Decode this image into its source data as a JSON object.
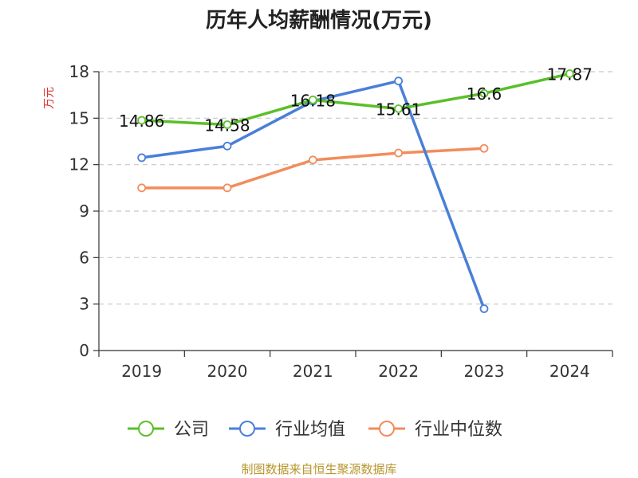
{
  "chart_data": {
    "type": "line",
    "title": "历年人均薪酬情况(万元)",
    "ylabel": "万元",
    "categories": [
      "2019",
      "2020",
      "2021",
      "2022",
      "2023",
      "2024"
    ],
    "ylim": [
      0,
      18
    ],
    "yticks": [
      0,
      3,
      6,
      9,
      12,
      15,
      18
    ],
    "grid": true,
    "legend_position": "bottom",
    "series": [
      {
        "name": "公司",
        "color": "#5bbf2a",
        "values": [
          14.86,
          14.58,
          16.18,
          15.61,
          16.6,
          17.87
        ],
        "labels": [
          "14.86",
          "14.58",
          "16.18",
          "15.61",
          "16.6",
          "17.87"
        ]
      },
      {
        "name": "行业均值",
        "color": "#4a7fd8",
        "values": [
          12.45,
          13.2,
          16.1,
          17.4,
          2.7,
          null
        ]
      },
      {
        "name": "行业中位数",
        "color": "#f28c5c",
        "values": [
          10.5,
          10.5,
          12.3,
          12.75,
          13.05,
          null
        ]
      }
    ]
  },
  "footer": {
    "source": "制图数据来自恒生聚源数据库"
  }
}
